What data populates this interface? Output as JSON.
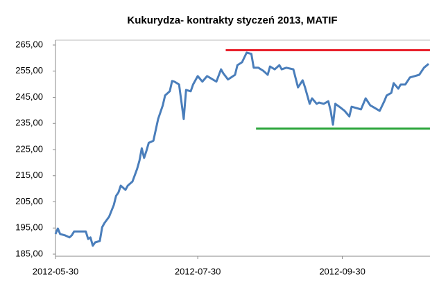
{
  "chart_data": {
    "type": "line",
    "title": "Kukurydza- kontrakty styczeń 2013, MATIF",
    "x": [
      "2012-05-30",
      "2012-05-31",
      "2012-06-01",
      "2012-06-03",
      "2012-06-05",
      "2012-06-06",
      "2012-06-07",
      "2012-06-10",
      "2012-06-12",
      "2012-06-13",
      "2012-06-14",
      "2012-06-15",
      "2012-06-16",
      "2012-06-18",
      "2012-06-19",
      "2012-06-20",
      "2012-06-22",
      "2012-06-24",
      "2012-06-25",
      "2012-06-26",
      "2012-06-27",
      "2012-06-29",
      "2012-06-30",
      "2012-07-02",
      "2012-07-04",
      "2012-07-05",
      "2012-07-06",
      "2012-07-07",
      "2012-07-08",
      "2012-07-09",
      "2012-07-11",
      "2012-07-13",
      "2012-07-15",
      "2012-07-16",
      "2012-07-18",
      "2012-07-19",
      "2012-07-20",
      "2012-07-22",
      "2012-07-24",
      "2012-07-25",
      "2012-07-27",
      "2012-07-28",
      "2012-07-30",
      "2012-08-01",
      "2012-08-03",
      "2012-08-04",
      "2012-08-07",
      "2012-08-09",
      "2012-08-10",
      "2012-08-12",
      "2012-08-15",
      "2012-08-16",
      "2012-08-18",
      "2012-08-20",
      "2012-08-22",
      "2012-08-23",
      "2012-08-25",
      "2012-08-27",
      "2012-08-29",
      "2012-08-30",
      "2012-09-01",
      "2012-09-03",
      "2012-09-04",
      "2012-09-06",
      "2012-09-09",
      "2012-09-11",
      "2012-09-13",
      "2012-09-14",
      "2012-09-16",
      "2012-09-17",
      "2012-09-19",
      "2012-09-20",
      "2012-09-22",
      "2012-09-24",
      "2012-09-25",
      "2012-09-26",
      "2012-09-27",
      "2012-09-29",
      "2012-10-01",
      "2012-10-03",
      "2012-10-04",
      "2012-10-06",
      "2012-10-08",
      "2012-10-10",
      "2012-10-12",
      "2012-10-13",
      "2012-10-16",
      "2012-10-18",
      "2012-10-19",
      "2012-10-21",
      "2012-10-22",
      "2012-10-24",
      "2012-10-25",
      "2012-10-27",
      "2012-10-29",
      "2012-10-31",
      "2012-11-02",
      "2012-11-04",
      "2012-11-06"
    ],
    "series": [
      {
        "color": "#4a7ebb",
        "values": [
          192.7,
          194.8,
          192.7,
          192.2,
          191.4,
          192.2,
          193.7,
          193.7,
          193.7,
          190.8,
          191.4,
          188.2,
          189.5,
          190,
          195.3,
          196.9,
          199.3,
          203.8,
          207.3,
          208.6,
          211.2,
          209.6,
          211.2,
          212.8,
          217.6,
          220.8,
          225.5,
          221.8,
          224.5,
          227.6,
          228.4,
          236.7,
          241.9,
          245.7,
          247.3,
          251.2,
          251,
          249.9,
          236.7,
          247.8,
          247.3,
          249.9,
          253.1,
          251,
          253.1,
          252.6,
          251,
          255.7,
          254.1,
          251.8,
          253.6,
          257.3,
          258.4,
          262.1,
          261.6,
          256.3,
          256.3,
          255.2,
          253.6,
          256.8,
          255.7,
          257.3,
          255.7,
          256.3,
          255.7,
          248.8,
          251.5,
          248.8,
          242.5,
          244.6,
          242.5,
          243,
          242.5,
          243.5,
          239.8,
          234.5,
          242.5,
          241.2,
          239.8,
          237.7,
          241.4,
          240.9,
          240.4,
          244.6,
          241.9,
          241.4,
          239.8,
          243.5,
          245.7,
          246.7,
          250.4,
          248.3,
          249.9,
          249.9,
          252.6,
          253.1,
          253.6,
          256.3,
          257.8
        ]
      }
    ],
    "reference_lines": [
      {
        "y": 263,
        "x_start": "2012-08-11",
        "color": "#e8202a"
      },
      {
        "y": 233,
        "x_start": "2012-08-24",
        "color": "#2aa53a"
      }
    ],
    "xlim": [
      "2012-05-30",
      "2012-11-06"
    ],
    "xticks": [
      "2012-05-30",
      "2012-07-30",
      "2012-09-30"
    ],
    "ylim": [
      185,
      265
    ],
    "yticks": [
      {
        "value": 185,
        "label": "185,00"
      },
      {
        "value": 195,
        "label": "195,00"
      },
      {
        "value": 205,
        "label": "205,00"
      },
      {
        "value": 215,
        "label": "215,00"
      },
      {
        "value": 225,
        "label": "225,00"
      },
      {
        "value": 235,
        "label": "235,00"
      },
      {
        "value": 245,
        "label": "245,00"
      },
      {
        "value": 255,
        "label": "255,00"
      },
      {
        "value": 265,
        "label": "265,00"
      }
    ],
    "grid": false
  }
}
